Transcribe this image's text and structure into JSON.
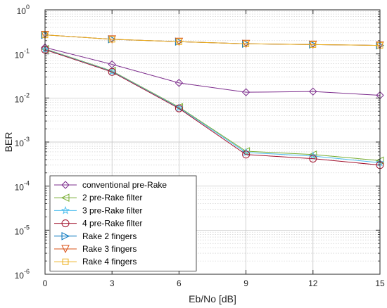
{
  "chart_data": {
    "type": "line",
    "xlabel": "Eb/No [dB]",
    "ylabel": "BER",
    "y_scale": "log",
    "xlim": [
      0,
      15
    ],
    "ylim": [
      1e-06,
      1
    ],
    "grid": true,
    "legend_position": "bottom-left",
    "x": [
      0,
      3,
      6,
      9,
      12,
      15
    ],
    "x_tick_labels": [
      "0",
      "3",
      "6",
      "9",
      "12",
      "15"
    ],
    "y_ticks": [
      {
        "value": 1.0,
        "base": "10",
        "exp": "0"
      },
      {
        "value": 0.1,
        "base": "10",
        "exp": "-1"
      },
      {
        "value": 0.01,
        "base": "10",
        "exp": "-2"
      },
      {
        "value": 0.001,
        "base": "10",
        "exp": "-3"
      },
      {
        "value": 0.0001,
        "base": "10",
        "exp": "-4"
      },
      {
        "value": 1e-05,
        "base": "10",
        "exp": "-5"
      },
      {
        "value": 1e-06,
        "base": "10",
        "exp": "-6"
      }
    ],
    "series": [
      {
        "name": "conventional pre-Rake",
        "color": "#7E2F8E",
        "marker": "diamond",
        "values": [
          0.14,
          0.058,
          0.022,
          0.0135,
          0.014,
          0.0115
        ]
      },
      {
        "name": "2 pre-Rake filter",
        "color": "#77AC30",
        "marker": "triangle-left",
        "values": [
          0.13,
          0.041,
          0.0062,
          0.00062,
          0.00052,
          0.00038
        ]
      },
      {
        "name": "3 pre-Rake filter",
        "color": "#4DBEEE",
        "marker": "star",
        "values": [
          0.128,
          0.04,
          0.006,
          0.00058,
          0.00048,
          0.00034
        ]
      },
      {
        "name": "4 pre-Rake filter",
        "color": "#A2142F",
        "marker": "circle",
        "values": [
          0.125,
          0.039,
          0.0058,
          0.00052,
          0.00042,
          0.0003
        ]
      },
      {
        "name": "Rake 2 fingers",
        "color": "#0072BD",
        "marker": "triangle-right",
        "values": [
          0.27,
          0.215,
          0.19,
          0.17,
          0.163,
          0.156
        ]
      },
      {
        "name": "Rake 3 fingers",
        "color": "#D95319",
        "marker": "triangle-down",
        "values": [
          0.27,
          0.215,
          0.19,
          0.17,
          0.163,
          0.156
        ]
      },
      {
        "name": "Rake 4 fingers",
        "color": "#EDB120",
        "marker": "square",
        "values": [
          0.27,
          0.215,
          0.19,
          0.17,
          0.163,
          0.156
        ]
      }
    ]
  }
}
